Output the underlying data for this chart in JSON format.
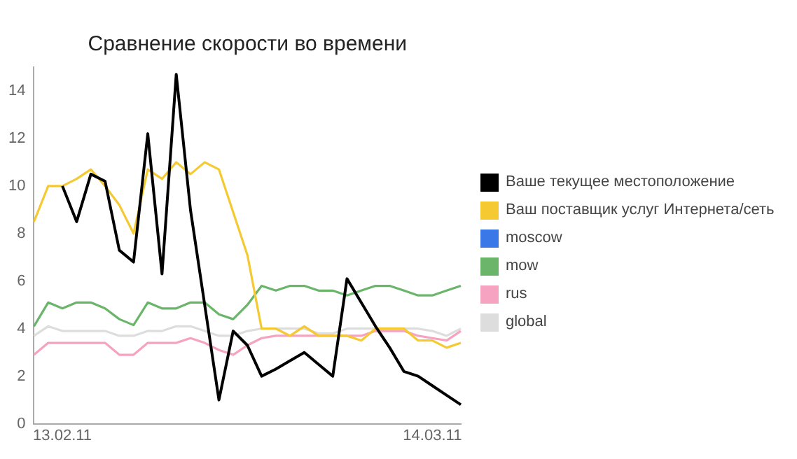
{
  "chart_data": {
    "type": "line",
    "title": "Сравнение скорости во времени",
    "categories": [
      null,
      null,
      "13.02.11",
      null,
      null,
      null,
      null,
      null,
      null,
      null,
      null,
      null,
      null,
      null,
      null,
      null,
      null,
      null,
      null,
      null,
      null,
      null,
      null,
      null,
      null,
      null,
      null,
      null,
      "14.03.11",
      null,
      null
    ],
    "series": [
      {
        "name": "Ваше текущее местоположение",
        "color": "#000000",
        "values": [
          null,
          null,
          10,
          8.5,
          10.5,
          10.2,
          7.3,
          6.8,
          12.2,
          6.3,
          14.7,
          9.0,
          5.0,
          1.0,
          3.9,
          3.3,
          2.0,
          2.3,
          2.65,
          3.0,
          2.5,
          2.0,
          6.1,
          5.1,
          4.1,
          3.2,
          2.2,
          2.0,
          1.6,
          1.2,
          0.8
        ]
      },
      {
        "name": "Ваш поставщик услуг Интернета/сеть",
        "color": "#f5c932",
        "values": [
          8.5,
          10.0,
          10.0,
          10.3,
          10.7,
          10.0,
          9.2,
          8.0,
          10.7,
          10.3,
          11.0,
          10.5,
          11.0,
          10.7,
          8.9,
          7.1,
          4.0,
          4.0,
          3.7,
          4.1,
          3.7,
          3.7,
          3.7,
          3.5,
          4.0,
          4.0,
          4.0,
          3.5,
          3.5,
          3.2,
          3.4
        ]
      },
      {
        "name": "moscow",
        "color": "#3a78e8",
        "values": [
          null,
          null,
          null,
          null,
          null,
          null,
          null,
          null,
          null,
          null,
          null,
          null,
          null,
          null,
          null,
          null,
          null,
          null,
          null,
          null,
          null,
          null,
          null,
          null,
          null,
          null,
          null,
          null,
          null,
          null,
          null
        ]
      },
      {
        "name": "mow",
        "color": "#6ab56a",
        "values": [
          4.1,
          5.1,
          4.85,
          5.1,
          5.1,
          4.85,
          4.4,
          4.15,
          5.1,
          4.85,
          4.85,
          5.1,
          5.1,
          4.6,
          4.4,
          5.0,
          5.8,
          5.6,
          5.8,
          5.8,
          5.6,
          5.6,
          5.4,
          5.6,
          5.8,
          5.8,
          5.6,
          5.4,
          5.4,
          5.6,
          5.8
        ]
      },
      {
        "name": "rus",
        "color": "#f5a3c0",
        "values": [
          2.9,
          3.4,
          3.4,
          3.4,
          3.4,
          3.4,
          2.9,
          2.9,
          3.4,
          3.4,
          3.4,
          3.6,
          3.4,
          3.1,
          2.9,
          3.3,
          3.6,
          3.7,
          3.7,
          3.7,
          3.7,
          3.7,
          3.7,
          3.7,
          3.9,
          3.9,
          3.9,
          3.7,
          3.6,
          3.5,
          3.9
        ]
      },
      {
        "name": "global",
        "color": "#dddddd",
        "values": [
          3.7,
          4.1,
          3.9,
          3.9,
          3.9,
          3.9,
          3.7,
          3.7,
          3.9,
          3.9,
          4.1,
          4.1,
          3.9,
          3.7,
          3.7,
          3.9,
          4.0,
          4.0,
          4.0,
          4.0,
          3.8,
          3.8,
          4.0,
          4.0,
          4.0,
          4.0,
          4.0,
          4.0,
          3.9,
          3.7,
          4.0
        ]
      }
    ],
    "ylim": [
      0,
      15
    ],
    "yticks": [
      0,
      2,
      4,
      6,
      8,
      10,
      12,
      14
    ],
    "grid": false,
    "legend": "right",
    "marker": "none",
    "line_style": "solid"
  }
}
